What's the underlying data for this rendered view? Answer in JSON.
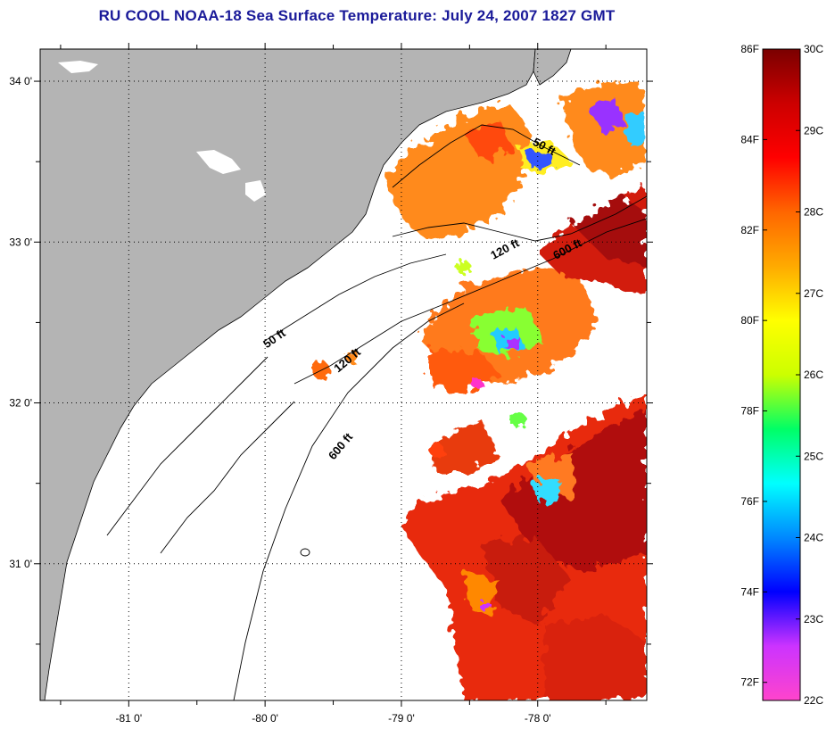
{
  "title": "RU COOL  NOAA-18  Sea Surface Temperature:  July 24, 2007 1827 GMT",
  "map": {
    "lon_range": [
      -81.65,
      -77.2
    ],
    "lat_range": [
      30.15,
      34.2
    ],
    "lon_ticks": [
      {
        "value": -81,
        "label": "-81 0'"
      },
      {
        "value": -80,
        "label": "-80 0'"
      },
      {
        "value": -79,
        "label": "-79 0'"
      },
      {
        "value": -78,
        "label": "-78 0'"
      }
    ],
    "lon_minor_ticks": [
      -81.5,
      -80.5,
      -79.5,
      -78.5,
      -77.5
    ],
    "lat_ticks": [
      {
        "value": 34,
        "label": "34 0'"
      },
      {
        "value": 33,
        "label": "33 0'"
      },
      {
        "value": 32,
        "label": "32 0'"
      },
      {
        "value": 31,
        "label": "31 0'"
      }
    ],
    "lat_minor_ticks": [
      33.5,
      32.5,
      31.5,
      30.5
    ],
    "grid": true,
    "land_color": "#b4b4b4",
    "isobath_labels": [
      {
        "text": "50 ft"
      },
      {
        "text": "120 ft"
      },
      {
        "text": "600 ft"
      },
      {
        "text": "50 ft"
      },
      {
        "text": "120 ft"
      },
      {
        "text": "600 ft"
      }
    ]
  },
  "colorbar": {
    "range_c": [
      22,
      30
    ],
    "range_f": [
      72,
      86
    ],
    "c_labels": [
      "30C",
      "29C",
      "28C",
      "27C",
      "26C",
      "25C",
      "24C",
      "23C",
      "22C"
    ],
    "f_labels": [
      "86F",
      "84F",
      "82F",
      "80F",
      "78F",
      "76F",
      "74F",
      "72F"
    ],
    "colors": [
      "#ff44cc",
      "#cc33ff",
      "#0000ff",
      "#0088ff",
      "#00ffff",
      "#00ff66",
      "#ccff00",
      "#ffff00",
      "#ffaa00",
      "#ff6600",
      "#ff0000",
      "#cc0000",
      "#7a0000"
    ]
  }
}
